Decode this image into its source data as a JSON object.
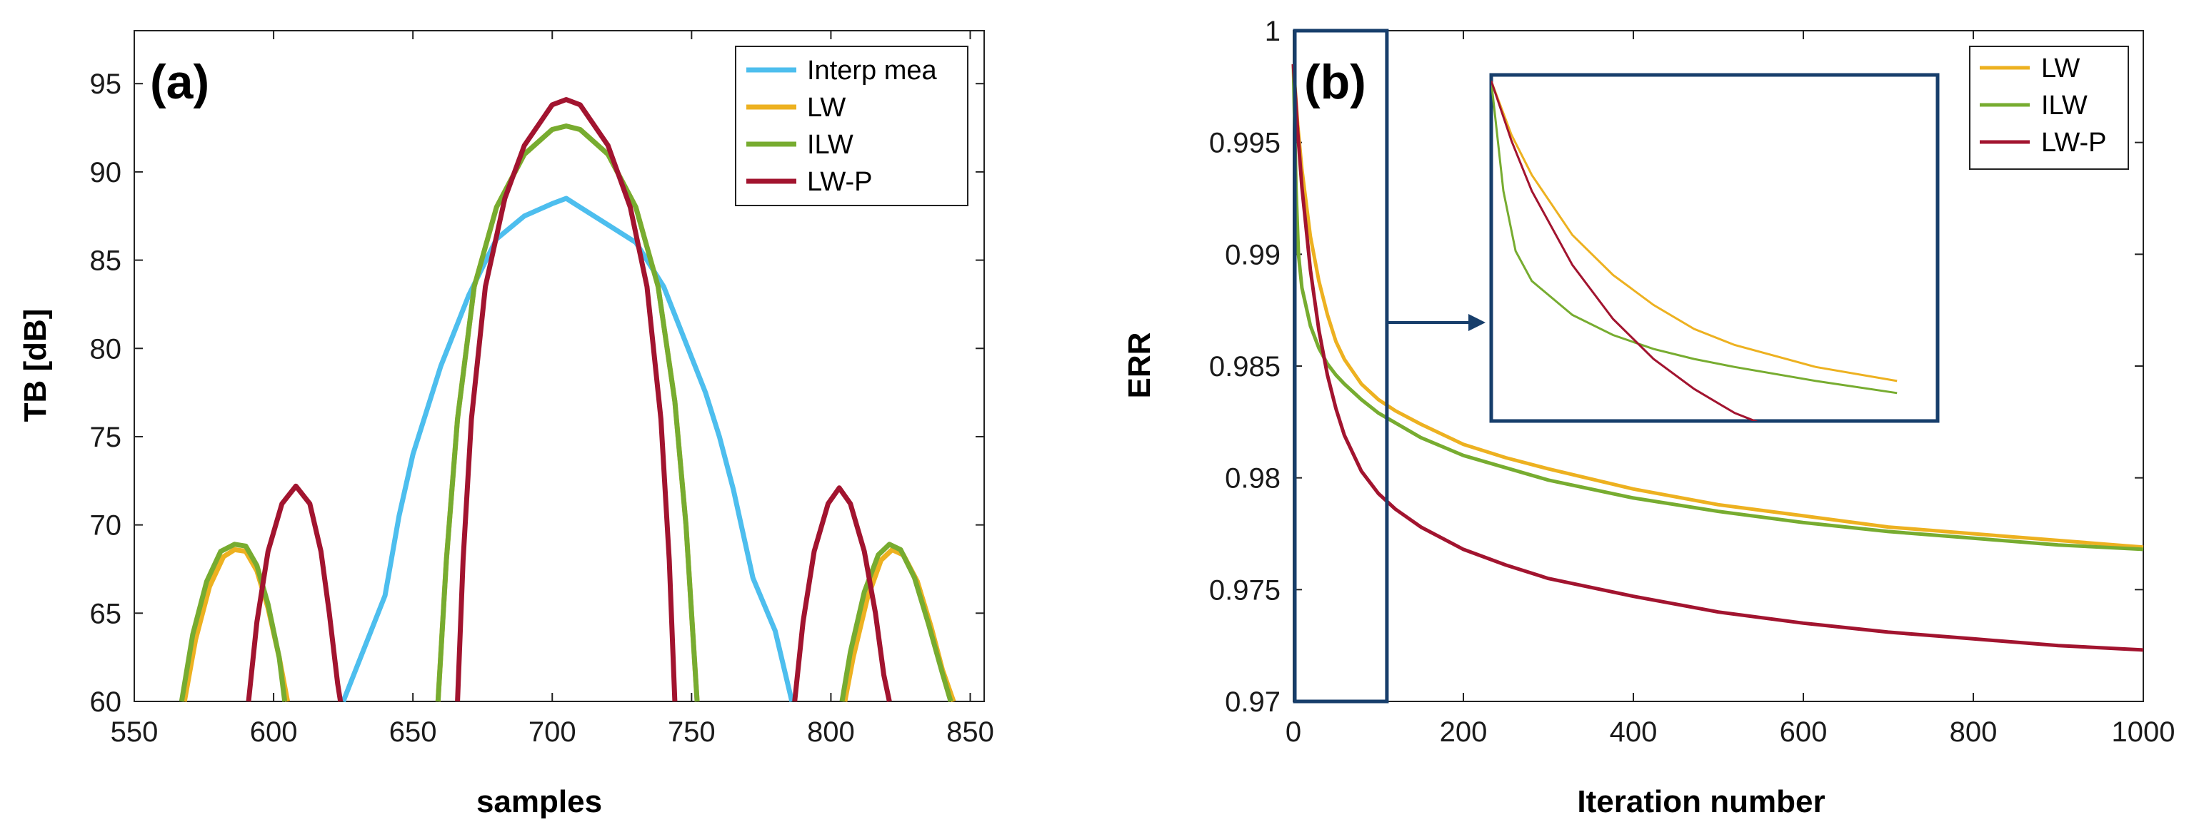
{
  "chart_data": [
    {
      "type": "line",
      "panel_label": "(a)",
      "xlabel": "samples",
      "ylabel": "TB [dB]",
      "xlim": [
        550,
        855
      ],
      "ylim": [
        60,
        98
      ],
      "xticks": [
        550,
        600,
        650,
        700,
        750,
        800,
        850
      ],
      "yticks": [
        60,
        65,
        70,
        75,
        80,
        85,
        90,
        95
      ],
      "grid": false,
      "legend_position": "top-right",
      "series": [
        {
          "name": "Interp mea",
          "color": "#4DBEEE",
          "segments": [
            {
              "x": [
                625,
                630,
                640,
                645,
                650,
                660,
                670,
                680,
                690,
                700,
                705,
                710,
                720,
                730,
                740,
                745,
                750,
                755,
                760,
                765,
                772,
                780,
                786
              ],
              "y": [
                60,
                62,
                66,
                70.5,
                74,
                79,
                83,
                86.2,
                87.5,
                88.2,
                88.5,
                88,
                87,
                86,
                83.5,
                81.5,
                79.5,
                77.5,
                75,
                72,
                67,
                64,
                60
              ]
            }
          ]
        },
        {
          "name": "LW",
          "color": "#EDB120",
          "segments": [
            {
              "x": [
                568,
                572,
                577,
                582,
                586,
                590,
                594,
                598,
                602,
                605
              ],
              "y": [
                60,
                63.5,
                66.5,
                68.2,
                68.6,
                68.5,
                67.4,
                65.3,
                62.5,
                60
              ]
            },
            {
              "x": [
                659,
                662,
                666,
                672,
                680,
                690,
                700,
                705,
                710,
                720,
                730,
                738,
                744,
                748,
                752
              ],
              "y": [
                60,
                68,
                76,
                83.5,
                88,
                91,
                92.4,
                92.6,
                92.4,
                91,
                88,
                83.5,
                77,
                70,
                60
              ]
            },
            {
              "x": [
                805,
                808,
                813,
                818,
                822,
                826,
                831,
                836,
                840,
                844
              ],
              "y": [
                60,
                62.5,
                65.8,
                68,
                68.6,
                68.3,
                66.8,
                64.2,
                61.8,
                60
              ]
            }
          ]
        },
        {
          "name": "ILW",
          "color": "#77AC30",
          "segments": [
            {
              "x": [
                567,
                571,
                576,
                581,
                586,
                590,
                594,
                598,
                602,
                604
              ],
              "y": [
                60,
                63.8,
                66.8,
                68.5,
                68.9,
                68.8,
                67.7,
                65.5,
                62.5,
                60
              ]
            },
            {
              "x": [
                659,
                662,
                666,
                672,
                680,
                690,
                700,
                705,
                710,
                720,
                730,
                738,
                744,
                748,
                752
              ],
              "y": [
                60,
                68,
                76,
                83.5,
                88,
                91,
                92.4,
                92.6,
                92.4,
                91,
                88,
                83.5,
                77,
                70,
                60
              ]
            },
            {
              "x": [
                804,
                807,
                812,
                817,
                821,
                825,
                830,
                835,
                840,
                843
              ],
              "y": [
                60,
                62.8,
                66.2,
                68.3,
                68.9,
                68.6,
                67,
                64.4,
                61.6,
                60
              ]
            }
          ]
        },
        {
          "name": "LW-P",
          "color": "#A2142F",
          "segments": [
            {
              "x": [
                591,
                594,
                598,
                603,
                608,
                613,
                617,
                620,
                623,
                624
              ],
              "y": [
                60,
                64.5,
                68.5,
                71.2,
                72.2,
                71.2,
                68.5,
                65,
                61,
                60
              ]
            },
            {
              "x": [
                666,
                668,
                671,
                676,
                683,
                690,
                700,
                705,
                710,
                720,
                728,
                734,
                739,
                742,
                744
              ],
              "y": [
                60,
                68,
                76,
                83.5,
                88.5,
                91.5,
                93.8,
                94.1,
                93.8,
                91.5,
                88,
                83.5,
                76,
                68,
                60
              ]
            },
            {
              "x": [
                787,
                790,
                794,
                799,
                803,
                807,
                812,
                816,
                819,
                821
              ],
              "y": [
                60,
                64.5,
                68.5,
                71.2,
                72.1,
                71.2,
                68.5,
                65,
                61.5,
                60
              ]
            }
          ]
        }
      ]
    },
    {
      "type": "line",
      "panel_label": "(b)",
      "xlabel": "Iteration number",
      "ylabel": "ERR",
      "xlim": [
        0,
        1000
      ],
      "ylim": [
        0.97,
        1
      ],
      "xticks": [
        0,
        200,
        400,
        600,
        800,
        1000
      ],
      "ytick_labels": [
        "0.97",
        "0.975",
        "0.98",
        "0.985",
        "0.99",
        "0.995",
        "1"
      ],
      "grid": false,
      "legend_position": "top-right",
      "zoom_window": {
        "x": [
          0,
          110
        ],
        "y": [
          0.97,
          1
        ]
      },
      "series": [
        {
          "name": "LW",
          "color": "#EDB120",
          "x": [
            0,
            5,
            10,
            20,
            30,
            40,
            50,
            60,
            80,
            100,
            120,
            150,
            200,
            250,
            300,
            400,
            500,
            600,
            700,
            800,
            900,
            1000
          ],
          "y": [
            0.9985,
            0.9958,
            0.9938,
            0.9908,
            0.9888,
            0.9873,
            0.9861,
            0.9853,
            0.9842,
            0.9835,
            0.983,
            0.9824,
            0.9815,
            0.9809,
            0.9804,
            0.9795,
            0.9788,
            0.9783,
            0.9778,
            0.9775,
            0.9772,
            0.9769
          ]
        },
        {
          "name": "ILW",
          "color": "#77AC30",
          "x": [
            0,
            3,
            6,
            10,
            20,
            30,
            40,
            50,
            60,
            80,
            100,
            150,
            200,
            300,
            400,
            500,
            600,
            700,
            800,
            900,
            1000
          ],
          "y": [
            0.9985,
            0.993,
            0.99,
            0.9885,
            0.9868,
            0.9858,
            0.9851,
            0.9846,
            0.9842,
            0.9835,
            0.9829,
            0.9818,
            0.981,
            0.9799,
            0.9791,
            0.9785,
            0.978,
            0.9776,
            0.9773,
            0.977,
            0.9768
          ]
        },
        {
          "name": "LW-P",
          "color": "#A2142F",
          "x": [
            0,
            5,
            10,
            20,
            30,
            40,
            50,
            60,
            80,
            100,
            120,
            150,
            200,
            250,
            300,
            400,
            500,
            600,
            700,
            800,
            900,
            1000
          ],
          "y": [
            0.9985,
            0.9955,
            0.993,
            0.9893,
            0.9866,
            0.9846,
            0.9831,
            0.9819,
            0.9803,
            0.9793,
            0.9786,
            0.9778,
            0.9768,
            0.9761,
            0.9755,
            0.9747,
            0.974,
            0.9735,
            0.9731,
            0.9728,
            0.9725,
            0.9723
          ]
        }
      ]
    }
  ]
}
